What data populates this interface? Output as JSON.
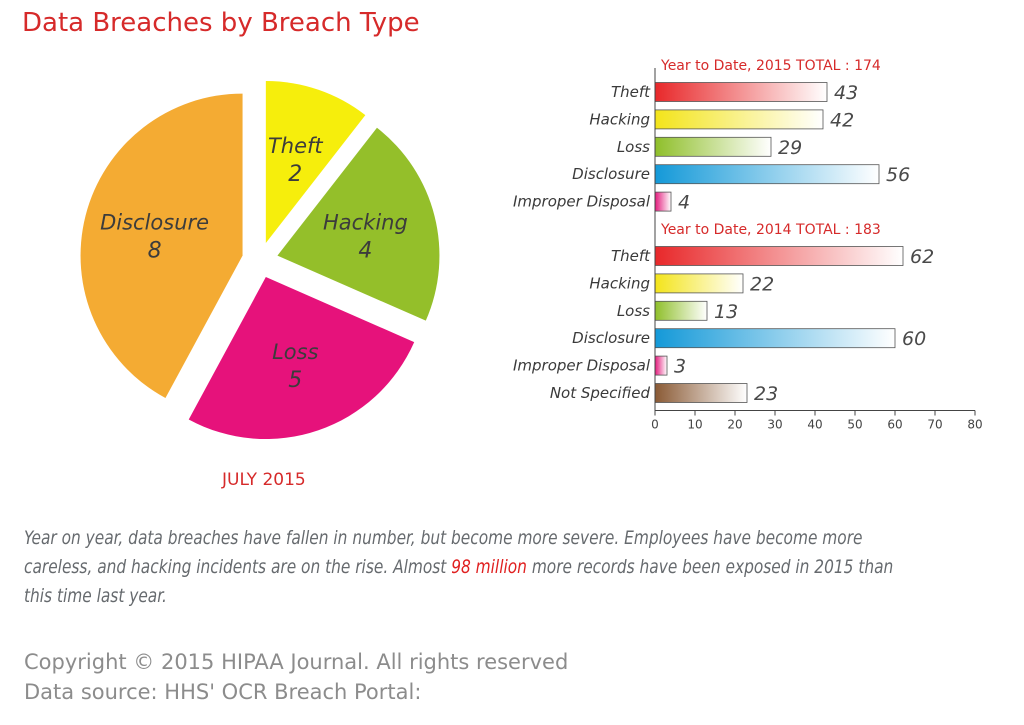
{
  "title": "Data Breaches by Breach Type",
  "month_label": "JULY 2015",
  "caption": {
    "text_before": "Year on year, data breaches have fallen in number, but become more severe. Employees have become more careless, and hacking incidents are on the rise. Almost ",
    "highlight": "98 million",
    "text_after": " more records have been exposed in 2015 than this time last year."
  },
  "footer": {
    "copyright": "Copyright © 2015 HIPAA Journal. All rights reserved",
    "source": "Data source: HHS' OCR Breach Portal:"
  },
  "chart_data": [
    {
      "type": "pie",
      "title": "",
      "slices": [
        {
          "label": "Theft",
          "value": 2,
          "color": "#f6ee0c"
        },
        {
          "label": "Hacking",
          "value": 4,
          "color": "#94bf2a"
        },
        {
          "label": "Loss",
          "value": 5,
          "color": "#e6127b"
        },
        {
          "label": "Disclosure",
          "value": 8,
          "color": "#f4ab33"
        }
      ]
    },
    {
      "type": "bar",
      "orientation": "horizontal",
      "groups": [
        {
          "name": "Year to Date, 2015 TOTAL : 174",
          "categories": [
            "Theft",
            "Hacking",
            "Loss",
            "Disclosure",
            "Improper Disposal"
          ],
          "values": [
            43,
            42,
            29,
            56,
            4
          ]
        },
        {
          "name": "Year to Date, 2014 TOTAL : 183",
          "categories": [
            "Theft",
            "Hacking",
            "Loss",
            "Disclosure",
            "Improper Disposal",
            "Not Specified"
          ],
          "values": [
            62,
            22,
            13,
            60,
            3,
            23
          ]
        }
      ],
      "category_colors": {
        "Theft": "#e8282a",
        "Hacking": "#f3e41a",
        "Loss": "#8fbf2a",
        "Disclosure": "#1499d8",
        "Improper Disposal": "#e31a7c",
        "Not Specified": "#8a5a35"
      },
      "xlim": [
        0,
        80
      ],
      "xticks": [
        0,
        10,
        20,
        30,
        40,
        50,
        60,
        70,
        80
      ],
      "grid": false
    }
  ]
}
